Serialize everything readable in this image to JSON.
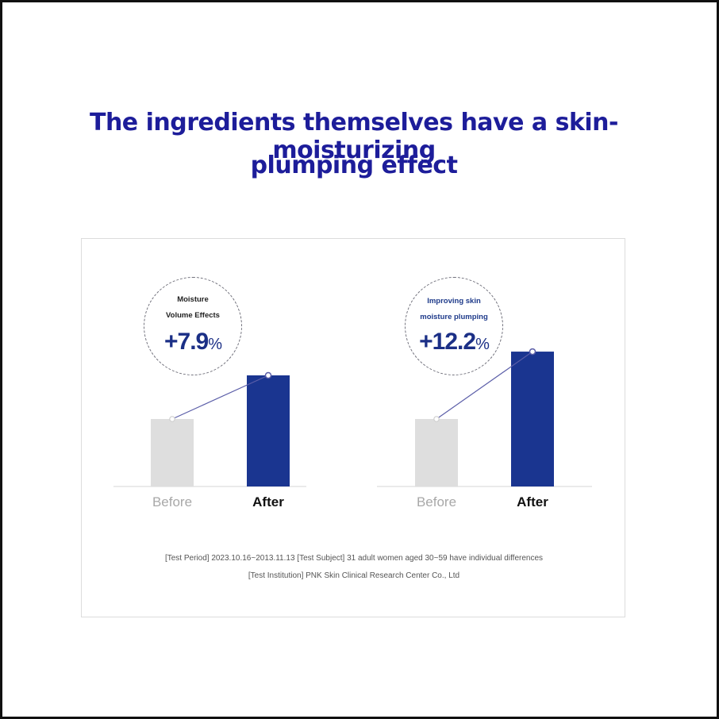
{
  "headline": {
    "line1": "The ingredients themselves have a skin-moisturizing",
    "line2": "plumping effect"
  },
  "chart_data": [
    {
      "type": "bar",
      "categories": [
        "Before",
        "After"
      ],
      "values": [
        100,
        107.9
      ],
      "badge": {
        "line1": "Moisture",
        "line2": "Volume Effects",
        "value": "+7.9",
        "unit": "%"
      }
    },
    {
      "type": "bar",
      "categories": [
        "Before",
        "After"
      ],
      "values": [
        100,
        112.2
      ],
      "badge": {
        "line1": "Improving skin",
        "line2": "moisture plumping",
        "value": "+12.2",
        "unit": "%"
      }
    }
  ],
  "colors": {
    "headline": "#1d1d9a",
    "before_bar": "#dedede",
    "after_bar": "#1a3590",
    "connector": "#5b5ea8"
  },
  "footnote": {
    "line1": "[Test Period] 2023.10.16~2013.11.13 [Test Subject] 31 adult women aged 30~59 have individual differences",
    "line2": "[Test Institution] PNK Skin Clinical Research Center Co., Ltd"
  }
}
